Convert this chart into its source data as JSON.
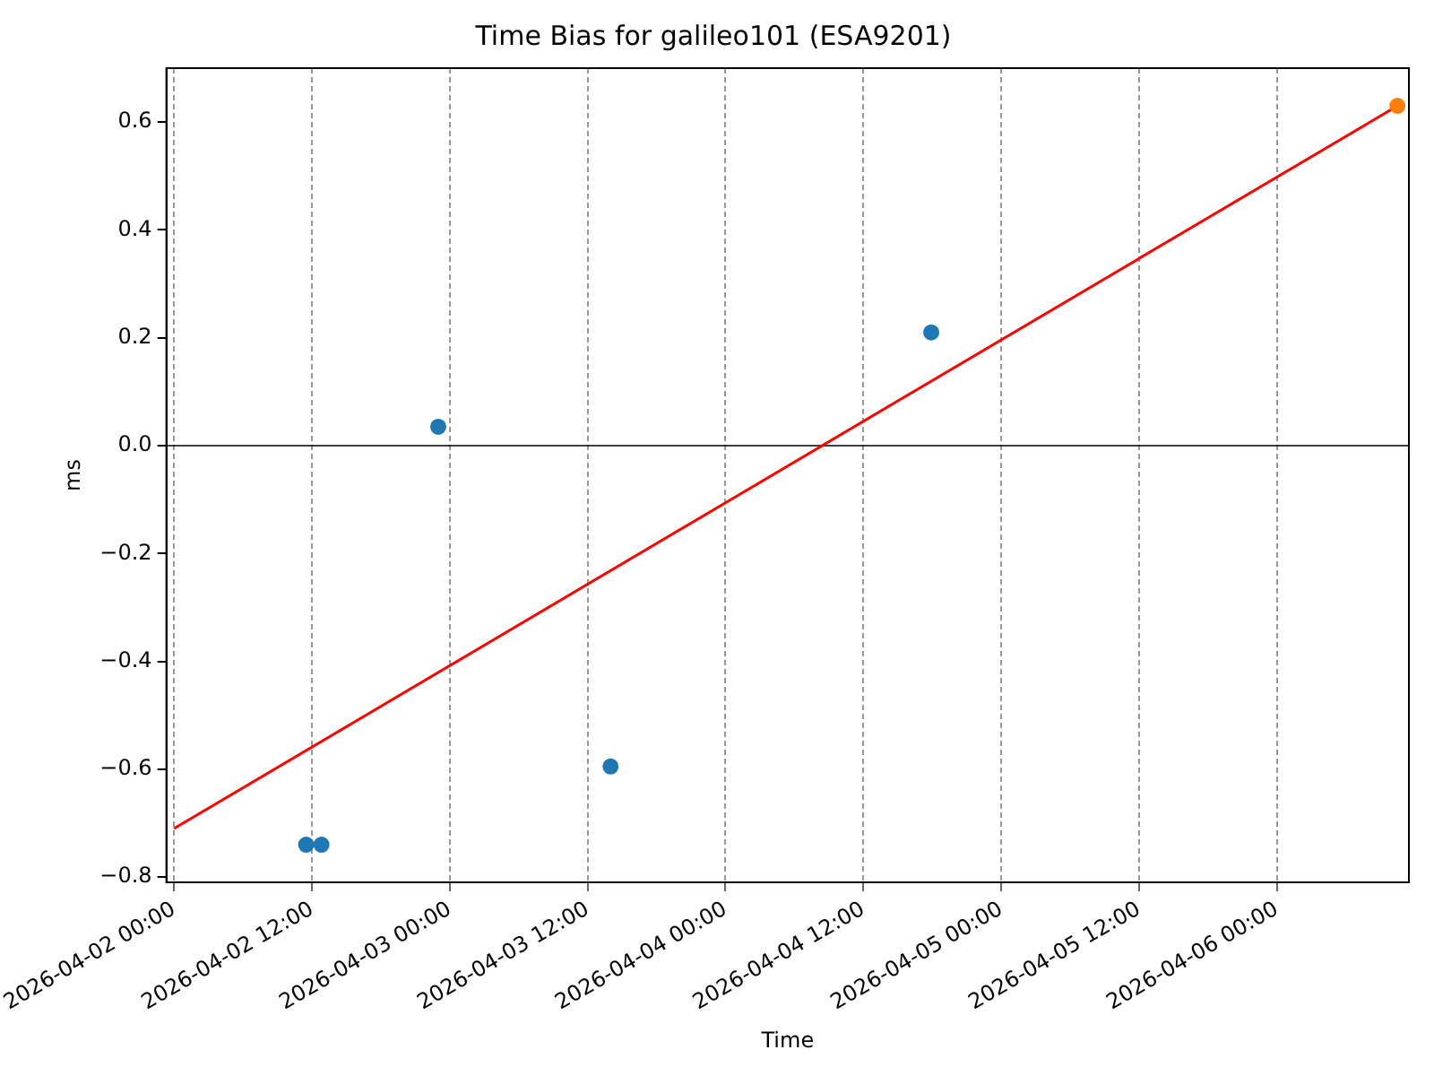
{
  "chart_data": {
    "type": "scatter",
    "title": "Time Bias for galileo101 (ESA9201)",
    "xlabel": "Time",
    "ylabel": "ms",
    "xlim": [
      "2026-04-01T23:20",
      "2026-04-06T11:30"
    ],
    "xticks": [
      {
        "value": "2026-04-02T00:00",
        "label": "2026-04-02 00:00"
      },
      {
        "value": "2026-04-02T12:00",
        "label": "2026-04-02 12:00"
      },
      {
        "value": "2026-04-03T00:00",
        "label": "2026-04-03 00:00"
      },
      {
        "value": "2026-04-03T12:00",
        "label": "2026-04-03 12:00"
      },
      {
        "value": "2026-04-04T00:00",
        "label": "2026-04-04 00:00"
      },
      {
        "value": "2026-04-04T12:00",
        "label": "2026-04-04 12:00"
      },
      {
        "value": "2026-04-05T00:00",
        "label": "2026-04-05 00:00"
      },
      {
        "value": "2026-04-05T12:00",
        "label": "2026-04-05 12:00"
      },
      {
        "value": "2026-04-06T00:00",
        "label": "2026-04-06 00:00"
      }
    ],
    "ylim": [
      -0.81,
      0.7
    ],
    "yticks": [
      {
        "value": -0.8,
        "label": "−0.8"
      },
      {
        "value": -0.6,
        "label": "−0.6"
      },
      {
        "value": -0.4,
        "label": "−0.4"
      },
      {
        "value": -0.2,
        "label": "−0.2"
      },
      {
        "value": 0,
        "label": "0.0"
      },
      0.2,
      0.4,
      0.6
    ],
    "grid": "x",
    "legend": false,
    "ref_lines": [
      {
        "axis": "y",
        "value": 0,
        "color": "#000000"
      }
    ],
    "series": [
      {
        "type": "scatter",
        "marker": "circle",
        "color": "#1f77b4",
        "x": [
          "2026-04-02T11:30",
          "2026-04-02T12:50",
          "2026-04-02T23:00",
          "2026-04-03T14:00",
          "2026-04-04T17:55"
        ],
        "values": [
          -0.74,
          -0.74,
          0.035,
          -0.595,
          0.21
        ]
      },
      {
        "type": "scatter",
        "marker": "circle",
        "color": "#ff7f0e",
        "x": [
          "2026-04-06T10:30"
        ],
        "values": [
          0.63
        ]
      },
      {
        "type": "line",
        "marker": "none",
        "color": "#ff0000",
        "x": [
          "2026-04-02T00:00",
          "2026-04-06T10:30"
        ],
        "values": [
          -0.71,
          0.63
        ]
      }
    ]
  }
}
